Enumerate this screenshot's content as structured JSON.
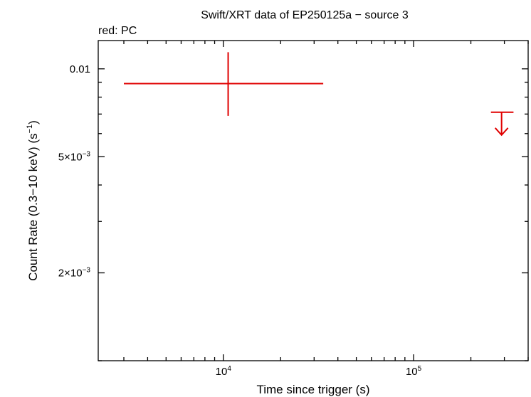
{
  "chart_data": {
    "type": "scatter",
    "title": "Swift/XRT data of EP250125a − source 3",
    "subtitle": "red: PC",
    "xlabel": "Time since trigger (s)",
    "ylabel_main": "Count Rate (0.3−10 keV) (s",
    "ylabel_sup": "−1",
    "ylabel_end": ")",
    "x_scale": "log",
    "y_scale": "log",
    "xlim": [
      2200,
      400000
    ],
    "ylim": [
      0.001,
      0.0125
    ],
    "x_ticks": [
      {
        "value": 10000,
        "base": "10",
        "exp": "4"
      },
      {
        "value": 100000,
        "base": "10",
        "exp": "5"
      }
    ],
    "y_ticks": [
      {
        "value": 0.01,
        "text": "0.01",
        "sup": ""
      },
      {
        "value": 0.005,
        "text": "5×10",
        "sup": "−3"
      },
      {
        "value": 0.002,
        "text": "2×10",
        "sup": "−3"
      }
    ],
    "series": [
      {
        "color": "#e00000",
        "points": [
          {
            "x": 10600,
            "x_lo": 3000,
            "x_hi": 33500,
            "y": 0.0089,
            "y_lo": 0.0069,
            "y_hi": 0.0114
          }
        ],
        "upper_limits": [
          {
            "x": 290000,
            "x_lo": 255000,
            "x_hi": 335000,
            "y": 0.0071
          }
        ]
      }
    ]
  }
}
